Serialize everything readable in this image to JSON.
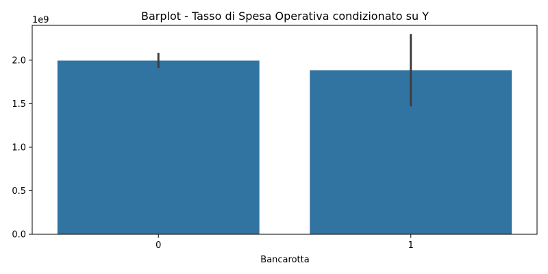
{
  "chart_data": {
    "type": "bar",
    "title": "Barplot - Tasso di Spesa Operativa condizionato su Y",
    "xlabel": "Bancarotta",
    "ylabel": "",
    "offset_label": "1e9",
    "categories": [
      "0",
      "1"
    ],
    "values": [
      1995000000,
      1885000000
    ],
    "error_low": [
      1910000000,
      1470000000
    ],
    "error_high": [
      2085000000,
      2300000000
    ],
    "ylim": [
      0,
      2400000000
    ],
    "yticks": [
      0,
      500000000,
      1000000000,
      1500000000,
      2000000000
    ],
    "ytick_labels": [
      "0.0",
      "0.5",
      "1.0",
      "1.5",
      "2.0"
    ],
    "bar_color": "#3274a1",
    "errorbar_color": "#3d3d3d",
    "grid": false,
    "legend": "none"
  }
}
